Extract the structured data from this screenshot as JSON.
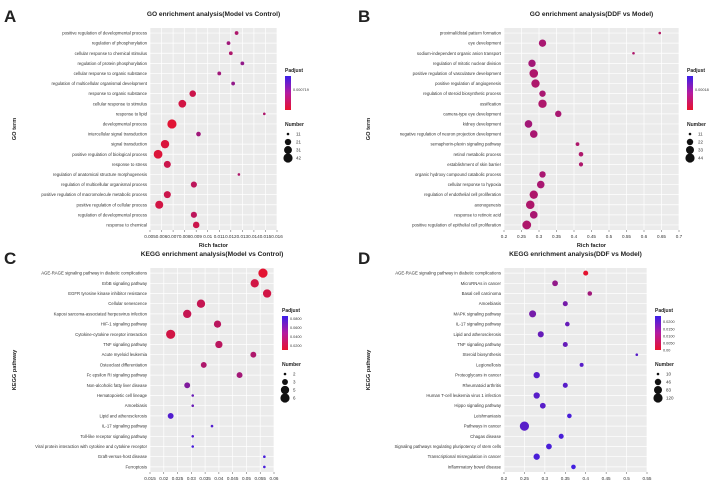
{
  "figure": {
    "panels": [
      "A",
      "B",
      "C",
      "D"
    ]
  },
  "chart_data": [
    {
      "id": "A",
      "type": "scatter",
      "panel_label": "A",
      "title": "GO enrichment analysis(Model vs Control)",
      "xlabel": "Rich factor",
      "ylabel": "GO term",
      "xlim": [
        0.005,
        0.016
      ],
      "xticks": [
        "0.005",
        "0.006",
        "0.007",
        "0.008",
        "0.009",
        "0.01",
        "0.011",
        "0.012",
        "0.013",
        "0.014",
        "0.015",
        "0.016"
      ],
      "xtick_values": [
        0.005,
        0.006,
        0.007,
        0.008,
        0.009,
        0.01,
        0.011,
        0.012,
        0.013,
        0.014,
        0.015,
        0.016
      ],
      "grid": true,
      "color_legend": {
        "title": "Padjust",
        "tick_labels": [
          "0.000719"
        ],
        "tick_values": [
          0.000719
        ],
        "range": [
          0.0,
          0.0012
        ],
        "low_color": "#e8132c",
        "high_color": "#3b1fe8"
      },
      "size_legend": {
        "title": "Number",
        "labels": [
          "11",
          "21",
          "31",
          "42"
        ],
        "values": [
          11,
          21,
          31,
          42
        ],
        "range": [
          11,
          42
        ]
      },
      "points": [
        {
          "term": "positive regulation of developmental process",
          "x": 0.0125,
          "n": 12,
          "p": 0.0004
        },
        {
          "term": "regulation of phosphorylation",
          "x": 0.0118,
          "n": 12,
          "p": 0.0005
        },
        {
          "term": "cellular response to chemical stimulus",
          "x": 0.012,
          "n": 12,
          "p": 0.0004
        },
        {
          "term": "regulation of protein phosphorylation",
          "x": 0.013,
          "n": 12,
          "p": 0.0006
        },
        {
          "term": "cellular response to organic substance",
          "x": 0.011,
          "n": 12,
          "p": 0.0005
        },
        {
          "term": "regulation of multicellular organismal development",
          "x": 0.0122,
          "n": 12,
          "p": 0.0006
        },
        {
          "term": "response to organic substance",
          "x": 0.0087,
          "n": 22,
          "p": 0.0002
        },
        {
          "term": "cellular response to stimulus",
          "x": 0.0078,
          "n": 30,
          "p": 0.00015
        },
        {
          "term": "response to lipid",
          "x": 0.0149,
          "n": 11,
          "p": 0.0004
        },
        {
          "term": "developmental process",
          "x": 0.0069,
          "n": 42,
          "p": 5e-05
        },
        {
          "term": "intercellular signal transduction",
          "x": 0.0092,
          "n": 14,
          "p": 0.0005
        },
        {
          "term": "signal transduction",
          "x": 0.0063,
          "n": 35,
          "p": 0.0001
        },
        {
          "term": "positive regulation of biological process",
          "x": 0.0057,
          "n": 38,
          "p": 8e-05
        },
        {
          "term": "response to stress",
          "x": 0.0065,
          "n": 25,
          "p": 0.0002
        },
        {
          "term": "regulation of anatomical structure morphogenesis",
          "x": 0.0127,
          "n": 11,
          "p": 0.0004
        },
        {
          "term": "regulation of multicellular organismal process",
          "x": 0.0088,
          "n": 20,
          "p": 0.0003
        },
        {
          "term": "positive regulation of macromolecule metabolic process",
          "x": 0.0065,
          "n": 25,
          "p": 0.0002
        },
        {
          "term": "positive regulation of cellular process",
          "x": 0.0058,
          "n": 32,
          "p": 0.00015
        },
        {
          "term": "regulation of developmental process",
          "x": 0.0088,
          "n": 20,
          "p": 0.0003
        },
        {
          "term": "response to chemical",
          "x": 0.009,
          "n": 22,
          "p": 0.0002
        }
      ]
    },
    {
      "id": "B",
      "type": "scatter",
      "panel_label": "B",
      "title": "GO enrichment analysis(DDF vs Model)",
      "xlabel": "Rich factor",
      "ylabel": "GO term",
      "xlim": [
        0.2,
        0.7
      ],
      "xticks": [
        "0.2",
        "0.25",
        "0.3",
        "0.35",
        "0.4",
        "0.45",
        "0.5",
        "0.55",
        "0.6",
        "0.65",
        "0.7"
      ],
      "xtick_values": [
        0.2,
        0.25,
        0.3,
        0.35,
        0.4,
        0.45,
        0.5,
        0.55,
        0.6,
        0.65,
        0.7
      ],
      "grid": true,
      "color_legend": {
        "title": "Padjust",
        "tick_labels": [
          "0.000182"
        ],
        "tick_values": [
          0.000182
        ],
        "range": [
          0.0,
          0.0003
        ],
        "low_color": "#e8132c",
        "high_color": "#3b1fe8"
      },
      "size_legend": {
        "title": "Number",
        "labels": [
          "11",
          "22",
          "33",
          "44"
        ],
        "values": [
          11,
          22,
          33,
          44
        ],
        "range": [
          11,
          44
        ]
      },
      "points": [
        {
          "term": "proximal/distal pattern formation",
          "x": 0.645,
          "n": 11,
          "p": 9e-05
        },
        {
          "term": "eye development",
          "x": 0.31,
          "n": 28,
          "p": 0.00011
        },
        {
          "term": "sodium-independent organic anion transport",
          "x": 0.57,
          "n": 11,
          "p": 0.0001
        },
        {
          "term": "regulation of mitotic nuclear division",
          "x": 0.28,
          "n": 28,
          "p": 0.00012
        },
        {
          "term": "positive regulation of vasculature development",
          "x": 0.285,
          "n": 38,
          "p": 0.0001
        },
        {
          "term": "positive regulation of angiogenesis",
          "x": 0.29,
          "n": 36,
          "p": 0.0001
        },
        {
          "term": "regulation of steroid biosynthetic process",
          "x": 0.31,
          "n": 22,
          "p": 0.00011
        },
        {
          "term": "ossification",
          "x": 0.31,
          "n": 36,
          "p": 0.0001
        },
        {
          "term": "camera-type eye development",
          "x": 0.355,
          "n": 22,
          "p": 0.00011
        },
        {
          "term": "kidney development",
          "x": 0.27,
          "n": 30,
          "p": 0.00012
        },
        {
          "term": "negative regulation of neuron projection development",
          "x": 0.285,
          "n": 30,
          "p": 0.00011
        },
        {
          "term": "semaphorin-plexin signaling pathway",
          "x": 0.41,
          "n": 12,
          "p": 0.0001
        },
        {
          "term": "retinol metabolic process",
          "x": 0.42,
          "n": 14,
          "p": 0.0001
        },
        {
          "term": "establishment of skin barrier",
          "x": 0.42,
          "n": 13,
          "p": 0.0001
        },
        {
          "term": "organic hydroxy compound catabolic process",
          "x": 0.31,
          "n": 22,
          "p": 0.00011
        },
        {
          "term": "cellular response to hypoxia",
          "x": 0.305,
          "n": 30,
          "p": 0.00011
        },
        {
          "term": "regulation of endothelial cell proliferation",
          "x": 0.285,
          "n": 36,
          "p": 0.0001
        },
        {
          "term": "axonogenesis",
          "x": 0.275,
          "n": 38,
          "p": 0.0001
        },
        {
          "term": "response to retinoic acid",
          "x": 0.285,
          "n": 30,
          "p": 0.00011
        },
        {
          "term": "positive regulation of epithelial cell proliferation",
          "x": 0.265,
          "n": 40,
          "p": 0.0001
        }
      ]
    },
    {
      "id": "C",
      "type": "scatter",
      "panel_label": "C",
      "title": "KEGG enrichment analysis(Model vs Control)",
      "xlabel": "Rich Factor",
      "ylabel": "KEGG pathway",
      "xlim": [
        0.015,
        0.06
      ],
      "xticks": [
        "0.015",
        "0.02",
        "0.025",
        "0.03",
        "0.035",
        "0.04",
        "0.045",
        "0.05",
        "0.055",
        "0.06"
      ],
      "xtick_values": [
        0.015,
        0.02,
        0.025,
        0.03,
        0.035,
        0.04,
        0.045,
        0.05,
        0.055,
        0.06
      ],
      "grid": true,
      "color_legend": {
        "title": "Padjust",
        "tick_labels": [
          "0.0800",
          "0.0600",
          "0.0400",
          "0.0200"
        ],
        "tick_values": [
          0.08,
          0.06,
          0.04,
          0.02
        ],
        "range": [
          0.01,
          0.085
        ],
        "low_color": "#e8132c",
        "high_color": "#3b1fe8"
      },
      "size_legend": {
        "title": "Number",
        "labels": [
          "2",
          "3",
          "5",
          "6"
        ],
        "values": [
          2,
          3,
          5,
          6
        ],
        "range": [
          2,
          6
        ]
      },
      "points": [
        {
          "term": "AGE-RAGE signaling pathway in diabetic complications",
          "x": 0.056,
          "n": 6,
          "p": 0.012
        },
        {
          "term": "ErbB signaling pathway",
          "x": 0.053,
          "n": 5,
          "p": 0.02
        },
        {
          "term": "EGFR tyrosine kinase inhibitor resistance",
          "x": 0.0575,
          "n": 5,
          "p": 0.02
        },
        {
          "term": "Cellular senescence",
          "x": 0.0335,
          "n": 5,
          "p": 0.025
        },
        {
          "term": "Kaposi sarcoma-associated herpesvirus infection",
          "x": 0.0285,
          "n": 5,
          "p": 0.025
        },
        {
          "term": "HIF-1 signaling pathway",
          "x": 0.0395,
          "n": 4,
          "p": 0.03
        },
        {
          "term": "Cytokine-cytokine receptor interaction",
          "x": 0.0225,
          "n": 6,
          "p": 0.02
        },
        {
          "term": "TNF signaling pathway",
          "x": 0.04,
          "n": 4,
          "p": 0.03
        },
        {
          "term": "Acute myeloid leukemia",
          "x": 0.0525,
          "n": 3,
          "p": 0.035
        },
        {
          "term": "Osteoclast differentiation",
          "x": 0.0345,
          "n": 3,
          "p": 0.035
        },
        {
          "term": "Fc epsilon RI signaling pathway",
          "x": 0.0475,
          "n": 3,
          "p": 0.04
        },
        {
          "term": "Non-alcoholic fatty liver disease",
          "x": 0.0285,
          "n": 3,
          "p": 0.055
        },
        {
          "term": "Hematopoietic cell lineage",
          "x": 0.0305,
          "n": 2,
          "p": 0.065
        },
        {
          "term": "Amoebiasis",
          "x": 0.0305,
          "n": 2,
          "p": 0.065
        },
        {
          "term": "Lipid and atherosclerosis",
          "x": 0.0225,
          "n": 3,
          "p": 0.075
        },
        {
          "term": "IL-17 signaling pathway",
          "x": 0.0375,
          "n": 2,
          "p": 0.075
        },
        {
          "term": "Toll-like receptor signaling pathway",
          "x": 0.0305,
          "n": 2,
          "p": 0.075
        },
        {
          "term": "Viral protein interaction with cytokine and cytokine receptor",
          "x": 0.0305,
          "n": 2,
          "p": 0.08
        },
        {
          "term": "Graft-versus-host disease",
          "x": 0.0565,
          "n": 2,
          "p": 0.08
        },
        {
          "term": "Ferroptosis",
          "x": 0.0565,
          "n": 2,
          "p": 0.08
        }
      ]
    },
    {
      "id": "D",
      "type": "scatter",
      "panel_label": "D",
      "title": "KEGG enrichment analysis(DDF vs Model)",
      "xlabel": "Rich Factor",
      "ylabel": "KEGG pathway",
      "xlim": [
        0.2,
        0.55
      ],
      "xticks": [
        "0.2",
        "0.25",
        "0.3",
        "0.35",
        "0.4",
        "0.45",
        "0.5",
        "0.55"
      ],
      "xtick_values": [
        0.2,
        0.25,
        0.3,
        0.35,
        0.4,
        0.45,
        0.5,
        0.55
      ],
      "grid": true,
      "color_legend": {
        "title": "Padjust",
        "tick_labels": [
          "0.0200",
          "0.0150",
          "0.0100",
          "0.0050",
          "0.00"
        ],
        "tick_values": [
          0.02,
          0.015,
          0.01,
          0.005,
          0.0
        ],
        "range": [
          0.0,
          0.024
        ],
        "low_color": "#e8132c",
        "high_color": "#3b1fe8"
      },
      "size_legend": {
        "title": "Number",
        "labels": [
          "10",
          "46",
          "83",
          "120"
        ],
        "values": [
          10,
          46,
          83,
          120
        ],
        "range": [
          10,
          120
        ]
      },
      "points": [
        {
          "term": "AGE-RAGE signaling pathway in diabetic complications",
          "x": 0.4,
          "n": 25,
          "p": 0.0005
        },
        {
          "term": "MicroRNAs in cancer",
          "x": 0.325,
          "n": 35,
          "p": 0.012
        },
        {
          "term": "Basal cell carcinoma",
          "x": 0.41,
          "n": 20,
          "p": 0.01
        },
        {
          "term": "Amoebiasis",
          "x": 0.35,
          "n": 25,
          "p": 0.016
        },
        {
          "term": "MAPK signaling pathway",
          "x": 0.27,
          "n": 60,
          "p": 0.016
        },
        {
          "term": "IL-17 signaling pathway",
          "x": 0.355,
          "n": 20,
          "p": 0.018
        },
        {
          "term": "Lipid and atherosclerosis",
          "x": 0.29,
          "n": 40,
          "p": 0.018
        },
        {
          "term": "TNF signaling pathway",
          "x": 0.35,
          "n": 25,
          "p": 0.018
        },
        {
          "term": "Steroid biosynthesis",
          "x": 0.525,
          "n": 10,
          "p": 0.02
        },
        {
          "term": "Legionellosis",
          "x": 0.39,
          "n": 15,
          "p": 0.02
        },
        {
          "term": "Proteoglycans in cancer",
          "x": 0.28,
          "n": 45,
          "p": 0.02
        },
        {
          "term": "Rheumatoid arthritis",
          "x": 0.35,
          "n": 25,
          "p": 0.02
        },
        {
          "term": "Human T-cell leukemia virus 1 infection",
          "x": 0.28,
          "n": 45,
          "p": 0.02
        },
        {
          "term": "Hippo signaling pathway",
          "x": 0.295,
          "n": 35,
          "p": 0.02
        },
        {
          "term": "Leishmaniasis",
          "x": 0.36,
          "n": 20,
          "p": 0.022
        },
        {
          "term": "Pathways in cancer",
          "x": 0.25,
          "n": 120,
          "p": 0.02
        },
        {
          "term": "Chagas disease",
          "x": 0.34,
          "n": 25,
          "p": 0.022
        },
        {
          "term": "Signaling pathways regulating pluripotency of stem cells",
          "x": 0.31,
          "n": 35,
          "p": 0.022
        },
        {
          "term": "Transcriptional misregulation in cancer",
          "x": 0.28,
          "n": 45,
          "p": 0.022
        },
        {
          "term": "Inflammatory bowel disease",
          "x": 0.37,
          "n": 20,
          "p": 0.023
        }
      ]
    }
  ]
}
